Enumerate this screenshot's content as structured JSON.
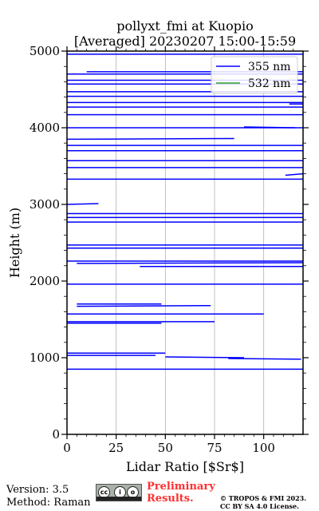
{
  "chart_data": {
    "type": "line",
    "title": "pollyxt_fmi at Kuopio",
    "subtitle": "[Averaged] 20230207 15:00-15:59",
    "xlabel": "Lidar Ratio [$Sr$]",
    "ylabel": "Height (m)",
    "xlim": [
      0,
      120
    ],
    "ylim": [
      0,
      5000
    ],
    "xticks": [
      0,
      25,
      50,
      75,
      100
    ],
    "yticks": [
      0,
      1000,
      2000,
      3000,
      4000,
      5000
    ],
    "grid": "x-only",
    "legend_position": "top-right",
    "series": [
      {
        "name": "355 nm",
        "color": "#0000ff",
        "segments": [
          {
            "x": [
              0,
              120
            ],
            "y": [
              4960,
              4960
            ]
          },
          {
            "x": [
              10,
              120
            ],
            "y": [
              4730,
              4730
            ]
          },
          {
            "x": [
              0,
              120
            ],
            "y": [
              4700,
              4700
            ]
          },
          {
            "x": [
              0,
              120
            ],
            "y": [
              4620,
              4620
            ]
          },
          {
            "x": [
              0,
              120
            ],
            "y": [
              4570,
              4570
            ]
          },
          {
            "x": [
              0,
              120
            ],
            "y": [
              4470,
              4470
            ]
          },
          {
            "x": [
              0,
              120
            ],
            "y": [
              4410,
              4410
            ]
          },
          {
            "x": [
              0,
              120
            ],
            "y": [
              4330,
              4330
            ]
          },
          {
            "x": [
              113,
              120
            ],
            "y": [
              4310,
              4310
            ]
          },
          {
            "x": [
              0,
              120
            ],
            "y": [
              4270,
              4270
            ]
          },
          {
            "x": [
              0,
              120
            ],
            "y": [
              4170,
              4170
            ]
          },
          {
            "x": [
              90,
              116
            ],
            "y": [
              4010,
              4000
            ]
          },
          {
            "x": [
              0,
              120
            ],
            "y": [
              4000,
              4000
            ]
          },
          {
            "x": [
              0,
              85
            ],
            "y": [
              3850,
              3860
            ]
          },
          {
            "x": [
              0,
              120
            ],
            "y": [
              3770,
              3770
            ]
          },
          {
            "x": [
              0,
              120
            ],
            "y": [
              3700,
              3700
            ]
          },
          {
            "x": [
              0,
              120
            ],
            "y": [
              3570,
              3570
            ]
          },
          {
            "x": [
              0,
              120
            ],
            "y": [
              3480,
              3480
            ]
          },
          {
            "x": [
              111,
              120
            ],
            "y": [
              3380,
              3400
            ]
          },
          {
            "x": [
              0,
              120
            ],
            "y": [
              3330,
              3330
            ]
          },
          {
            "x": [
              0,
              16
            ],
            "y": [
              3000,
              3010
            ]
          },
          {
            "x": [
              0,
              120
            ],
            "y": [
              2880,
              2880
            ]
          },
          {
            "x": [
              0,
              120
            ],
            "y": [
              2830,
              2830
            ]
          },
          {
            "x": [
              0,
              120
            ],
            "y": [
              2770,
              2770
            ]
          },
          {
            "x": [
              0,
              120
            ],
            "y": [
              2470,
              2470
            ]
          },
          {
            "x": [
              0,
              120
            ],
            "y": [
              2430,
              2430
            ]
          },
          {
            "x": [
              0,
              120
            ],
            "y": [
              2260,
              2260
            ]
          },
          {
            "x": [
              5,
              120
            ],
            "y": [
              2230,
              2240
            ]
          },
          {
            "x": [
              37,
              120
            ],
            "y": [
              2190,
              2190
            ]
          },
          {
            "x": [
              0,
              120
            ],
            "y": [
              1960,
              1960
            ]
          },
          {
            "x": [
              5,
              48
            ],
            "y": [
              1700,
              1700
            ]
          },
          {
            "x": [
              5,
              73
            ],
            "y": [
              1670,
              1680
            ]
          },
          {
            "x": [
              0,
              100
            ],
            "y": [
              1570,
              1570
            ]
          },
          {
            "x": [
              0,
              75
            ],
            "y": [
              1470,
              1470
            ]
          },
          {
            "x": [
              0,
              48
            ],
            "y": [
              1450,
              1450
            ]
          },
          {
            "x": [
              0,
              50
            ],
            "y": [
              1060,
              1060
            ]
          },
          {
            "x": [
              0,
              45
            ],
            "y": [
              1030,
              1030
            ]
          },
          {
            "x": [
              50,
              90
            ],
            "y": [
              1010,
              1000
            ]
          },
          {
            "x": [
              82,
              119
            ],
            "y": [
              990,
              980
            ]
          },
          {
            "x": [
              0,
              120
            ],
            "y": [
              850,
              850
            ]
          }
        ]
      },
      {
        "name": "532 nm",
        "color": "#2ca02c",
        "segments": []
      }
    ]
  },
  "footer": {
    "version": "Version: 3.5",
    "method": "Method: Raman",
    "preliminary_line1": "Preliminary",
    "preliminary_line2": "Results.",
    "copyright_line1": "© TROPOS & FMI 2023.",
    "copyright_line2": "CC BY SA 4.0 License."
  },
  "icons": {
    "license_badge": "cc-by-sa-icon"
  },
  "colors": {
    "preliminary": "#ff3030",
    "grid": "#b0b0b0"
  }
}
